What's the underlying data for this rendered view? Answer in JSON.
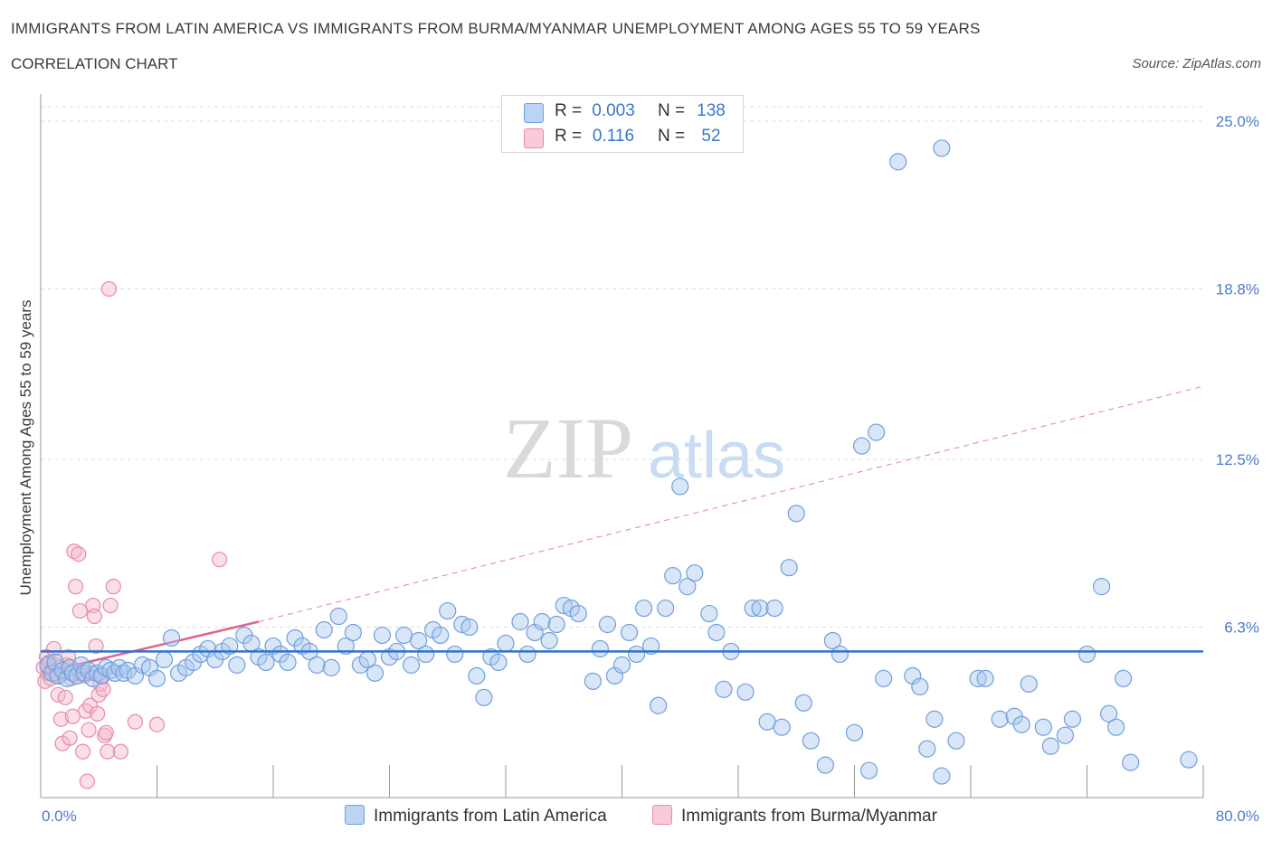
{
  "header": {
    "title": "IMMIGRANTS FROM LATIN AMERICA VS IMMIGRANTS FROM BURMA/MYANMAR UNEMPLOYMENT AMONG AGES 55 TO 59 YEARS",
    "subtitle": "CORRELATION CHART",
    "source": "Source: ZipAtlas.com"
  },
  "watermark": {
    "zip": "ZIP",
    "atlas": "atlas"
  },
  "legend": {
    "r_label": "R =",
    "n_label": "N =",
    "rows": [
      {
        "series": "Immigrants from Latin America",
        "r": "0.003",
        "n": "138"
      },
      {
        "series": "Immigrants from Burma/Myanmar",
        "r": "0.116",
        "n": "52"
      }
    ]
  },
  "colors": {
    "blue_fill": "#aac8ef",
    "blue_stroke": "#6f9fdc",
    "blue_line": "#2f72c8",
    "pink_fill": "#f5b8cb",
    "pink_stroke": "#e88aa8",
    "pink_line": "#e0628f",
    "tick_color": "#4a7cc7",
    "grid": "#dddddd"
  },
  "chart_data": {
    "type": "scatter",
    "title": "IMMIGRANTS FROM LATIN AMERICA VS IMMIGRANTS FROM BURMA/MYANMAR UNEMPLOYMENT AMONG AGES 55 TO 59 YEARS",
    "xlabel": "",
    "ylabel": "Unemployment Among Ages 55 to 59 years",
    "xlim": [
      0,
      80
    ],
    "ylim": [
      0,
      25.0
    ],
    "x_tick_labels": [
      "0.0%",
      "80.0%"
    ],
    "y_ticks": [
      6.3,
      12.5,
      18.8,
      25.0
    ],
    "y_tick_labels": [
      "6.3%",
      "12.5%",
      "18.8%",
      "25.0%"
    ],
    "grid": true,
    "legend_placement": "top-center",
    "series": [
      {
        "name": "Immigrants from Latin America",
        "color": "#aac8ef",
        "trend": {
          "x": [
            0,
            80
          ],
          "y": [
            5.4,
            5.4
          ],
          "style": "solid"
        },
        "points": [
          [
            0.5,
            4.9
          ],
          [
            0.8,
            4.6
          ],
          [
            1.0,
            5.0
          ],
          [
            1.2,
            4.5
          ],
          [
            1.5,
            4.7
          ],
          [
            1.8,
            4.4
          ],
          [
            2.0,
            4.8
          ],
          [
            2.2,
            4.6
          ],
          [
            2.5,
            4.5
          ],
          [
            2.8,
            4.9
          ],
          [
            3.0,
            4.6
          ],
          [
            3.3,
            4.7
          ],
          [
            3.6,
            4.4
          ],
          [
            3.9,
            4.6
          ],
          [
            4.2,
            4.5
          ],
          [
            4.5,
            4.8
          ],
          [
            4.8,
            4.7
          ],
          [
            5.1,
            4.6
          ],
          [
            5.4,
            4.8
          ],
          [
            5.7,
            4.6
          ],
          [
            6.0,
            4.7
          ],
          [
            6.5,
            4.5
          ],
          [
            7.0,
            4.9
          ],
          [
            7.5,
            4.8
          ],
          [
            8.0,
            4.4
          ],
          [
            8.5,
            5.1
          ],
          [
            9.0,
            5.9
          ],
          [
            9.5,
            4.6
          ],
          [
            10.0,
            4.8
          ],
          [
            10.5,
            5.0
          ],
          [
            11.0,
            5.3
          ],
          [
            11.5,
            5.5
          ],
          [
            12.0,
            5.1
          ],
          [
            12.5,
            5.4
          ],
          [
            13.0,
            5.6
          ],
          [
            13.5,
            4.9
          ],
          [
            14.0,
            6.0
          ],
          [
            14.5,
            5.7
          ],
          [
            15.0,
            5.2
          ],
          [
            15.5,
            5.0
          ],
          [
            16.0,
            5.6
          ],
          [
            16.5,
            5.3
          ],
          [
            17.0,
            5.0
          ],
          [
            17.5,
            5.9
          ],
          [
            18.0,
            5.6
          ],
          [
            18.5,
            5.4
          ],
          [
            19.0,
            4.9
          ],
          [
            19.5,
            6.2
          ],
          [
            20.0,
            4.8
          ],
          [
            20.5,
            6.7
          ],
          [
            21.0,
            5.6
          ],
          [
            21.5,
            6.1
          ],
          [
            22.0,
            4.9
          ],
          [
            22.5,
            5.1
          ],
          [
            23.0,
            4.6
          ],
          [
            23.5,
            6.0
          ],
          [
            24.0,
            5.2
          ],
          [
            24.5,
            5.4
          ],
          [
            25.0,
            6.0
          ],
          [
            25.5,
            4.9
          ],
          [
            26.0,
            5.8
          ],
          [
            26.5,
            5.3
          ],
          [
            27.0,
            6.2
          ],
          [
            27.5,
            6.0
          ],
          [
            28.0,
            6.9
          ],
          [
            28.5,
            5.3
          ],
          [
            29.0,
            6.4
          ],
          [
            29.5,
            6.3
          ],
          [
            30.0,
            4.5
          ],
          [
            30.5,
            3.7
          ],
          [
            31.0,
            5.2
          ],
          [
            31.5,
            5.0
          ],
          [
            32.0,
            5.7
          ],
          [
            33.0,
            6.5
          ],
          [
            33.5,
            5.3
          ],
          [
            34.0,
            6.1
          ],
          [
            34.5,
            6.5
          ],
          [
            35.0,
            5.8
          ],
          [
            35.5,
            6.4
          ],
          [
            36.0,
            7.1
          ],
          [
            36.5,
            7.0
          ],
          [
            37.0,
            6.8
          ],
          [
            38.0,
            4.3
          ],
          [
            38.5,
            5.5
          ],
          [
            39.0,
            6.4
          ],
          [
            39.5,
            4.5
          ],
          [
            40.0,
            4.9
          ],
          [
            40.5,
            6.1
          ],
          [
            41.0,
            5.3
          ],
          [
            41.5,
            7.0
          ],
          [
            42.0,
            5.6
          ],
          [
            42.5,
            3.4
          ],
          [
            43.0,
            7.0
          ],
          [
            43.5,
            8.2
          ],
          [
            44.0,
            11.5
          ],
          [
            44.5,
            7.8
          ],
          [
            45.0,
            8.3
          ],
          [
            46.0,
            6.8
          ],
          [
            46.5,
            6.1
          ],
          [
            47.0,
            4.0
          ],
          [
            47.5,
            5.4
          ],
          [
            48.5,
            3.9
          ],
          [
            49.0,
            7.0
          ],
          [
            49.5,
            7.0
          ],
          [
            50.0,
            2.8
          ],
          [
            50.5,
            7.0
          ],
          [
            51.0,
            2.6
          ],
          [
            51.5,
            8.5
          ],
          [
            52.0,
            10.5
          ],
          [
            52.5,
            3.5
          ],
          [
            53.0,
            2.1
          ],
          [
            54.0,
            1.2
          ],
          [
            54.5,
            5.8
          ],
          [
            55.0,
            5.3
          ],
          [
            56.0,
            2.4
          ],
          [
            56.5,
            13.0
          ],
          [
            57.0,
            1.0
          ],
          [
            57.5,
            13.5
          ],
          [
            58.0,
            4.4
          ],
          [
            59.0,
            23.5
          ],
          [
            60.0,
            4.5
          ],
          [
            60.5,
            4.1
          ],
          [
            61.0,
            1.8
          ],
          [
            61.5,
            2.9
          ],
          [
            62.0,
            0.8
          ],
          [
            62.0,
            24.0
          ],
          [
            63.0,
            2.1
          ],
          [
            64.5,
            4.4
          ],
          [
            65.0,
            4.4
          ],
          [
            66.0,
            2.9
          ],
          [
            67.0,
            3.0
          ],
          [
            67.5,
            2.7
          ],
          [
            68.0,
            4.2
          ],
          [
            69.0,
            2.6
          ],
          [
            69.5,
            1.9
          ],
          [
            70.5,
            2.3
          ],
          [
            71.0,
            2.9
          ],
          [
            72.0,
            5.3
          ],
          [
            73.0,
            7.8
          ],
          [
            73.5,
            3.1
          ],
          [
            74.0,
            2.6
          ],
          [
            74.5,
            4.4
          ],
          [
            75.0,
            1.3
          ],
          [
            79.0,
            1.4
          ]
        ]
      },
      {
        "name": "Immigrants from Burma/Myanmar",
        "color": "#f5b8cb",
        "trend": {
          "x": [
            0,
            15
          ],
          "y": [
            4.6,
            6.5
          ],
          "style": "solid",
          "extended_x": [
            15,
            80
          ],
          "extended_y": [
            6.5,
            15.2
          ],
          "extended_style": "dashed"
        },
        "points": [
          [
            0.2,
            4.8
          ],
          [
            0.3,
            4.3
          ],
          [
            0.4,
            5.2
          ],
          [
            0.5,
            4.6
          ],
          [
            0.6,
            5.0
          ],
          [
            0.7,
            4.4
          ],
          [
            0.8,
            4.7
          ],
          [
            0.9,
            5.5
          ],
          [
            1.0,
            4.9
          ],
          [
            1.1,
            4.5
          ],
          [
            1.2,
            3.8
          ],
          [
            1.3,
            4.8
          ],
          [
            1.4,
            2.9
          ],
          [
            1.5,
            2.0
          ],
          [
            1.6,
            4.6
          ],
          [
            1.7,
            3.7
          ],
          [
            1.8,
            4.9
          ],
          [
            1.9,
            5.2
          ],
          [
            2.0,
            2.2
          ],
          [
            2.1,
            4.4
          ],
          [
            2.2,
            3.0
          ],
          [
            2.3,
            9.1
          ],
          [
            2.4,
            7.8
          ],
          [
            2.5,
            4.7
          ],
          [
            2.6,
            9.0
          ],
          [
            2.7,
            6.9
          ],
          [
            2.8,
            4.6
          ],
          [
            2.9,
            1.7
          ],
          [
            3.0,
            4.5
          ],
          [
            3.1,
            3.2
          ],
          [
            3.2,
            0.6
          ],
          [
            3.3,
            2.5
          ],
          [
            3.4,
            3.4
          ],
          [
            3.5,
            4.6
          ],
          [
            3.6,
            7.1
          ],
          [
            3.7,
            6.7
          ],
          [
            3.8,
            5.6
          ],
          [
            3.9,
            3.1
          ],
          [
            4.0,
            3.8
          ],
          [
            4.1,
            4.2
          ],
          [
            4.2,
            4.5
          ],
          [
            4.3,
            4.0
          ],
          [
            4.4,
            2.3
          ],
          [
            4.5,
            2.4
          ],
          [
            4.6,
            1.7
          ],
          [
            4.7,
            18.8
          ],
          [
            4.8,
            7.1
          ],
          [
            5.0,
            7.8
          ],
          [
            5.5,
            1.7
          ],
          [
            6.5,
            2.8
          ],
          [
            8.0,
            2.7
          ],
          [
            12.3,
            8.8
          ]
        ]
      }
    ]
  }
}
